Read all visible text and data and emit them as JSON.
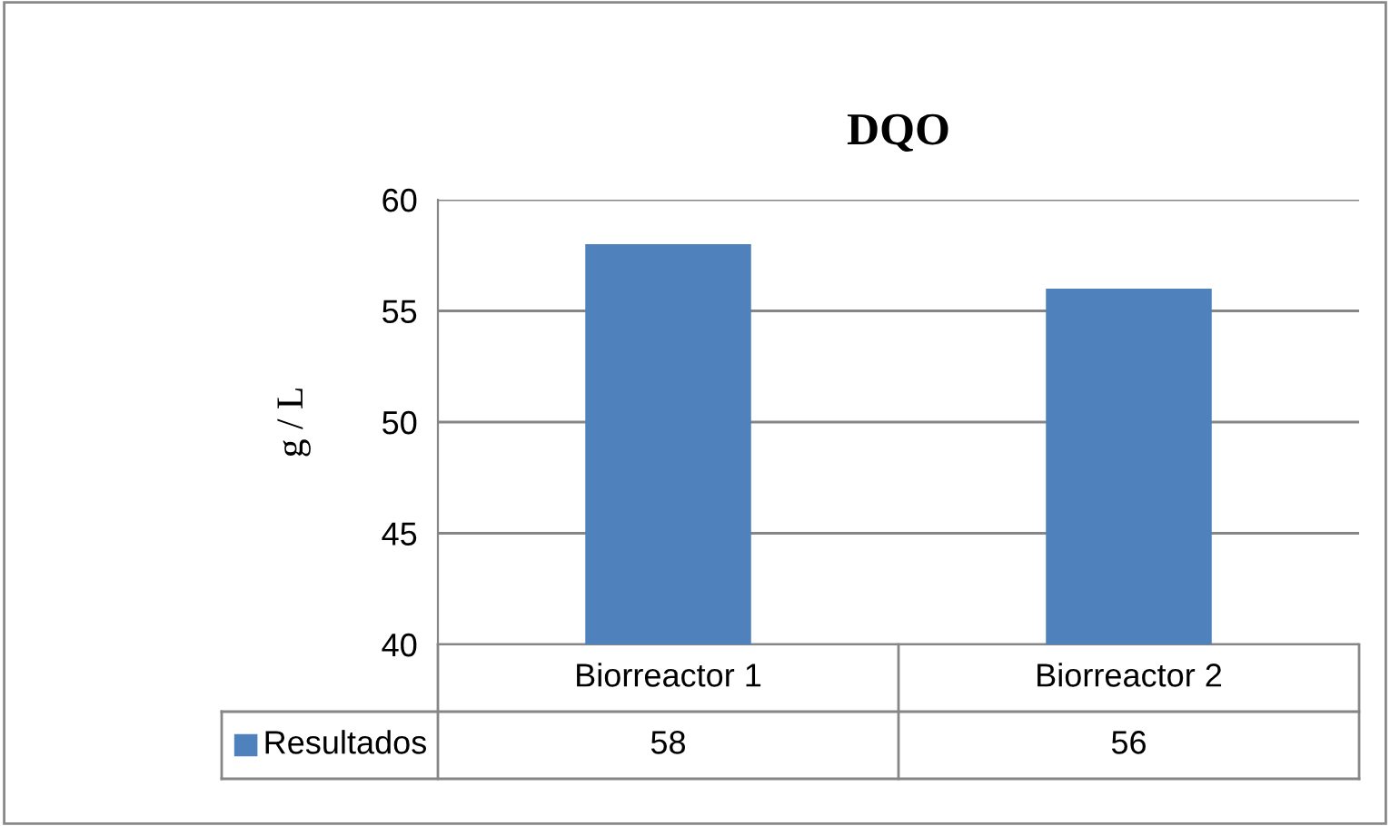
{
  "chart_data": {
    "type": "bar",
    "title": "DQO",
    "ylabel": "g / L",
    "categories": [
      "Biorreactor 1",
      "Biorreactor 2"
    ],
    "series": [
      {
        "name": "Resultados",
        "color": "#4f81bd",
        "values": [
          58,
          56
        ]
      }
    ],
    "ylim": [
      40,
      60
    ],
    "yticks": [
      40,
      45,
      50,
      55,
      60
    ],
    "grid": "y",
    "data_labels": true,
    "legend": "bottom left"
  }
}
